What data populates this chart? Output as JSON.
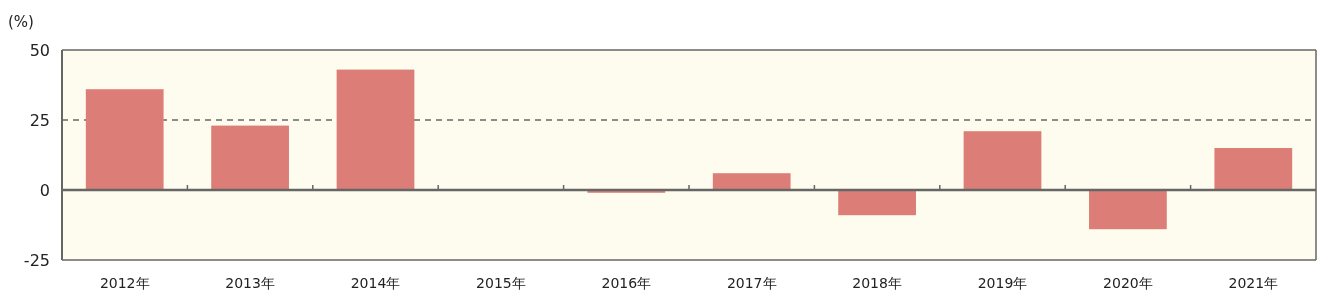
{
  "chart_data": {
    "type": "bar",
    "ylabel": "(%)",
    "categories": [
      "2012年",
      "2013年",
      "2014年",
      "2015年",
      "2016年",
      "2017年",
      "2018年",
      "2019年",
      "2020年",
      "2021年"
    ],
    "values": [
      36,
      23,
      43,
      0,
      -1,
      6,
      -9,
      21,
      -14,
      15
    ],
    "color": "#dc7e77",
    "ylim": [
      -25,
      50
    ],
    "yticks": [
      -25,
      0,
      25,
      50
    ],
    "grid": false,
    "ref_lines": [
      {
        "axis": "y",
        "value": 25,
        "color": "#666666",
        "line_style": "dashed"
      }
    ]
  }
}
